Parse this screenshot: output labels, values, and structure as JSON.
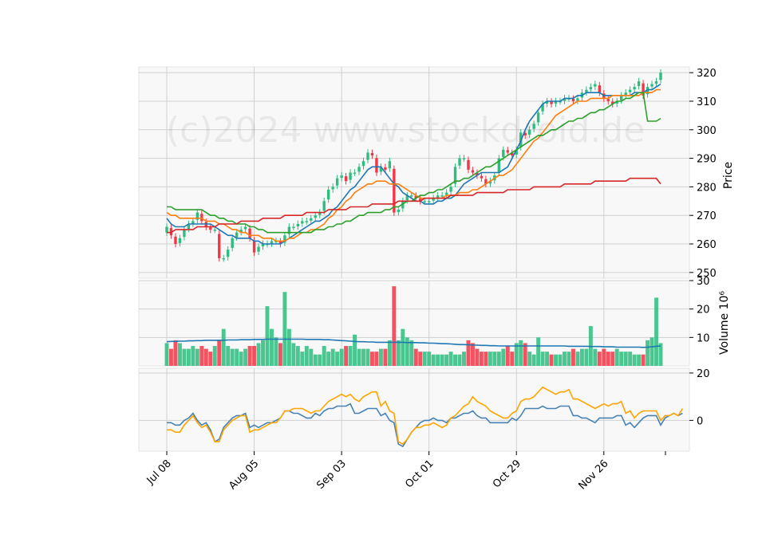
{
  "watermark": "(c)2024 www.stockdroid.de",
  "colors": {
    "up": "#2ebd7f",
    "down": "#f23645",
    "panel_bg": "#f8f8f8",
    "grid": "#d0d0d0",
    "ma_short": "#1f77b4",
    "ma_mid": "#ff7f0e",
    "ma_long": "#2ca02c",
    "ma_200": "#d62728",
    "vol_ma": "#1f77b4",
    "osc_blue": "#4682b4",
    "osc_orange": "#ffa500"
  },
  "chart_data": [
    {
      "type": "candlestick",
      "panel": "price",
      "ylabel": "Price",
      "ylim": [
        248,
        322
      ],
      "yticks": [
        250,
        260,
        270,
        280,
        290,
        300,
        310,
        320
      ],
      "x_tick_labels": [
        "Jul 08",
        "Aug 05",
        "Sep 03",
        "Oct 01",
        "Oct 29",
        "Nov 26"
      ],
      "x_tick_index": [
        0,
        20,
        40,
        60,
        80,
        100
      ],
      "close": [
        266,
        263,
        260,
        262,
        265,
        267,
        268,
        271,
        268,
        266,
        265,
        265,
        255,
        255,
        258,
        262,
        264,
        265,
        266,
        262,
        257,
        259,
        260,
        260,
        261,
        261,
        260,
        263,
        266,
        266,
        267,
        268,
        268,
        269,
        270,
        271,
        275,
        279,
        280,
        283,
        284,
        282,
        285,
        285,
        287,
        289,
        292,
        291,
        285,
        287,
        286,
        289,
        271,
        272,
        275,
        277,
        277,
        276,
        275,
        275,
        275,
        276,
        277,
        277,
        278,
        280,
        287,
        290,
        290,
        286,
        285,
        284,
        283,
        281,
        282,
        284,
        290,
        293,
        292,
        291,
        293,
        299,
        298,
        300,
        302,
        306,
        309,
        310,
        309,
        310,
        310,
        311,
        311,
        310,
        311,
        313,
        314,
        315,
        316,
        313,
        311,
        310,
        309,
        310,
        312,
        313,
        314,
        315,
        317,
        312,
        315,
        316,
        317,
        320
      ],
      "series": [
        {
          "name": "",
          "color": "ma_short",
          "values": [
            269,
            267,
            266,
            266,
            266,
            267,
            267,
            267,
            267,
            267,
            267,
            266,
            265,
            264,
            263,
            263,
            262,
            262,
            262,
            262,
            261,
            261,
            260,
            260,
            260,
            260,
            260,
            261,
            262,
            263,
            264,
            265,
            266,
            267,
            268,
            268,
            269,
            270,
            272,
            273,
            275,
            277,
            279,
            280,
            282,
            284,
            286,
            287,
            287,
            287,
            285,
            283,
            281,
            280,
            278,
            277,
            276,
            275,
            275,
            274,
            274,
            274,
            275,
            275,
            276,
            276,
            277,
            279,
            281,
            282,
            283,
            284,
            285,
            285,
            285,
            285,
            285,
            286,
            287,
            290,
            293,
            296,
            300,
            303,
            305,
            307,
            309,
            310,
            310,
            310,
            310,
            311,
            311,
            311,
            312,
            312,
            313,
            313,
            313,
            313,
            312,
            312,
            312,
            312,
            312,
            312,
            312,
            313,
            313,
            313,
            314,
            314,
            315,
            316
          ]
        },
        {
          "name": "",
          "color": "ma_mid",
          "values": [
            271,
            270,
            270,
            269,
            269,
            269,
            269,
            269,
            269,
            268,
            268,
            268,
            267,
            267,
            266,
            265,
            265,
            264,
            264,
            263,
            263,
            263,
            262,
            262,
            262,
            261,
            261,
            261,
            262,
            262,
            263,
            264,
            264,
            265,
            265,
            266,
            267,
            269,
            270,
            272,
            273,
            275,
            276,
            278,
            279,
            280,
            281,
            281,
            282,
            282,
            282,
            281,
            281,
            281,
            280,
            279,
            278,
            277,
            276,
            276,
            276,
            276,
            276,
            276,
            277,
            277,
            277,
            278,
            278,
            278,
            279,
            279,
            280,
            281,
            282,
            283,
            284,
            284,
            285,
            286,
            288,
            290,
            292,
            294,
            296,
            297,
            299,
            301,
            303,
            305,
            306,
            307,
            308,
            309,
            310,
            310,
            310,
            311,
            311,
            311,
            311,
            311,
            312,
            312,
            312,
            312,
            312,
            312,
            312,
            313,
            313,
            313,
            314,
            314
          ]
        },
        {
          "name": "",
          "color": "ma_long",
          "values": [
            273,
            273,
            272,
            272,
            272,
            272,
            272,
            272,
            272,
            271,
            270,
            270,
            269,
            269,
            268,
            268,
            267,
            267,
            267,
            266,
            266,
            265,
            265,
            264,
            264,
            264,
            264,
            264,
            264,
            264,
            264,
            264,
            264,
            264,
            265,
            265,
            265,
            266,
            266,
            267,
            267,
            268,
            268,
            269,
            270,
            270,
            271,
            271,
            271,
            271,
            272,
            272,
            273,
            273,
            274,
            275,
            275,
            276,
            277,
            277,
            278,
            278,
            279,
            279,
            280,
            281,
            282,
            282,
            283,
            283,
            284,
            285,
            286,
            287,
            287,
            288,
            289,
            290,
            291,
            292,
            293,
            294,
            295,
            296,
            297,
            298,
            298,
            299,
            300,
            300,
            301,
            302,
            303,
            303,
            304,
            304,
            305,
            306,
            306,
            307,
            307,
            308,
            309,
            310,
            310,
            311,
            311,
            312,
            313,
            313,
            303,
            303,
            303,
            304
          ]
        },
        {
          "name": "",
          "color": "ma_200",
          "values": [
            264,
            264,
            265,
            265,
            265,
            265,
            265,
            266,
            266,
            266,
            266,
            266,
            267,
            267,
            267,
            267,
            267,
            268,
            268,
            268,
            268,
            268,
            269,
            269,
            269,
            269,
            269,
            270,
            270,
            270,
            270,
            270,
            271,
            271,
            271,
            271,
            271,
            272,
            272,
            272,
            272,
            272,
            273,
            273,
            273,
            273,
            273,
            274,
            274,
            274,
            274,
            274,
            274,
            275,
            275,
            275,
            275,
            275,
            275,
            276,
            276,
            276,
            276,
            276,
            276,
            277,
            277,
            277,
            277,
            277,
            277,
            278,
            278,
            278,
            278,
            278,
            278,
            278,
            279,
            279,
            279,
            279,
            279,
            279,
            280,
            280,
            280,
            280,
            280,
            280,
            280,
            281,
            281,
            281,
            281,
            281,
            281,
            281,
            282,
            282,
            282,
            282,
            282,
            282,
            282,
            282,
            283,
            283,
            283,
            283,
            283,
            283,
            283,
            281
          ]
        }
      ]
    },
    {
      "type": "bar",
      "panel": "volume",
      "ylabel": "Volume  10⁶",
      "ylim": [
        0,
        30
      ],
      "yticks": [
        10,
        20,
        30
      ],
      "values": [
        8,
        6,
        9,
        8,
        6,
        6,
        7,
        6,
        7,
        6,
        5,
        7,
        9,
        13,
        7,
        6,
        6,
        5,
        6,
        7,
        7,
        8,
        9,
        21,
        13,
        10,
        8,
        26,
        13,
        8,
        7,
        5,
        7,
        6,
        4,
        4,
        7,
        5,
        6,
        5,
        6,
        7,
        7,
        11,
        6,
        6,
        6,
        5,
        5,
        6,
        6,
        9,
        28,
        9,
        13,
        10,
        9,
        6,
        5,
        5,
        5,
        4,
        4,
        4,
        4,
        5,
        4,
        4,
        5,
        9,
        8,
        6,
        5,
        5,
        5,
        5,
        5,
        6,
        7,
        5,
        8,
        9,
        8,
        5,
        4,
        10,
        5,
        5,
        4,
        4,
        4,
        5,
        5,
        6,
        5,
        6,
        6,
        14,
        6,
        5,
        6,
        5,
        5,
        6,
        5,
        5,
        5,
        4,
        4,
        4,
        9,
        10,
        24,
        8
      ],
      "ma": [
        8.5,
        8.6,
        8.6,
        8.7,
        8.7,
        8.8,
        8.8,
        8.9,
        8.9,
        9.0,
        9.0,
        9.0,
        9.0,
        9.0,
        9.1,
        9.1,
        9.1,
        9.2,
        9.2,
        9.2,
        9.3,
        9.3,
        9.3,
        9.4,
        9.4,
        9.4,
        9.4,
        9.4,
        9.4,
        9.4,
        9.4,
        9.4,
        9.3,
        9.3,
        9.3,
        9.3,
        9.2,
        9.2,
        9.1,
        9.0,
        8.9,
        8.8,
        8.7,
        8.6,
        8.5,
        8.5,
        8.4,
        8.4,
        8.3,
        8.3,
        8.3,
        8.3,
        8.3,
        8.3,
        8.3,
        8.2,
        8.2,
        8.2,
        8.1,
        8.1,
        8.0,
        8.0,
        7.9,
        7.8,
        7.8,
        7.7,
        7.6,
        7.5,
        7.5,
        7.4,
        7.3,
        7.3,
        7.2,
        7.2,
        7.1,
        7.1,
        7.0,
        7.0,
        7.0,
        7.0,
        7.0,
        7.0,
        7.0,
        7.0,
        7.0,
        7.0,
        7.0,
        7.0,
        7.0,
        7.0,
        7.0,
        7.0,
        6.9,
        6.9,
        6.9,
        6.9,
        6.9,
        6.8,
        6.8,
        6.8,
        6.7,
        6.7,
        6.7,
        6.6,
        6.6,
        6.6,
        6.6,
        6.6,
        6.6,
        6.5,
        6.6,
        6.7,
        6.9,
        7.0
      ]
    },
    {
      "type": "line",
      "panel": "oscillator",
      "ylim": [
        -13,
        22
      ],
      "yticks": [
        0,
        20
      ],
      "series": [
        {
          "name": "",
          "color": "osc_blue",
          "values": [
            -1,
            -1,
            -2,
            -2,
            0,
            1,
            3,
            0,
            -2,
            -1,
            -4,
            -9,
            -8,
            -3,
            -1,
            1,
            2,
            2,
            3,
            -3,
            -2,
            -3,
            -2,
            -1,
            -1,
            0,
            1,
            4,
            4,
            3,
            3,
            2,
            1,
            1,
            3,
            2,
            4,
            5,
            5,
            6,
            6,
            6,
            7,
            3,
            3,
            4,
            5,
            5,
            5,
            2,
            3,
            0,
            -1,
            -10,
            -11,
            -8,
            -5,
            -3,
            -1,
            0,
            0,
            1,
            0,
            0,
            -1,
            1,
            1,
            2,
            3,
            3,
            4,
            2,
            1,
            1,
            -1,
            -1,
            -1,
            -1,
            -1,
            1,
            0,
            2,
            5,
            5,
            5,
            5,
            6,
            5,
            5,
            5,
            6,
            6,
            6,
            2,
            2,
            1,
            1,
            0,
            -1,
            1,
            1,
            1,
            1,
            2,
            2,
            -2,
            -1,
            -3,
            -1,
            1,
            2,
            2,
            2,
            -2,
            1,
            2,
            3,
            2,
            3
          ]
        },
        {
          "name": "",
          "color": "osc_orange",
          "values": [
            -4,
            -4,
            -5,
            -5,
            -2,
            0,
            2,
            -1,
            -3,
            -2,
            -5,
            -9,
            -9,
            -4,
            -2,
            0,
            1,
            2,
            2,
            -5,
            -4,
            -4,
            -3,
            -2,
            -1,
            -1,
            1,
            4,
            4,
            5,
            5,
            5,
            4,
            3,
            4,
            4,
            6,
            8,
            9,
            10,
            11,
            10,
            11,
            9,
            8,
            10,
            11,
            12,
            12,
            6,
            8,
            4,
            3,
            -9,
            -10,
            -8,
            -5,
            -3,
            -3,
            -2,
            -2,
            -1,
            -2,
            -3,
            -2,
            1,
            2,
            4,
            6,
            7,
            10,
            8,
            7,
            6,
            4,
            3,
            2,
            1,
            1,
            3,
            4,
            8,
            9,
            9,
            10,
            12,
            14,
            13,
            12,
            11,
            12,
            12,
            13,
            9,
            9,
            8,
            7,
            6,
            5,
            6,
            7,
            6,
            7,
            7,
            8,
            3,
            4,
            1,
            3,
            4,
            4,
            4,
            4,
            0,
            2,
            2,
            3,
            2,
            5
          ]
        }
      ]
    }
  ]
}
